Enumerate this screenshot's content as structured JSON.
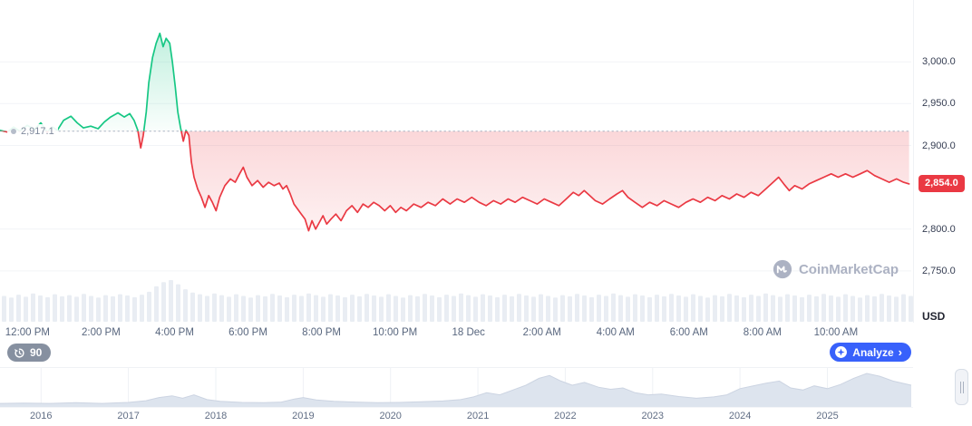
{
  "ui": {
    "watermark": "CoinMarketCap",
    "usd_label": "USD",
    "history_badge": "90",
    "analyze": {
      "label": "Analyze",
      "chevron": "›",
      "color": "#3861fb"
    },
    "baseline_label": "2,917.1",
    "price_badge": {
      "label": "2,854.0",
      "color": "#ea3943"
    }
  },
  "chart_data": [
    {
      "id": "price-24h",
      "type": "line",
      "title": "24h price chart with baseline",
      "unit": "USD",
      "baseline": 2917.1,
      "last_price": 2854.0,
      "ylim": [
        2738,
        3063
      ],
      "xlim": [
        0,
        24.8
      ],
      "grid": true,
      "colors": {
        "up": "#16c784",
        "down": "#ea3943",
        "baseline": "#a9b2c2",
        "volume": "#e9edf3",
        "grid": "#f2f4f7"
      },
      "y_ticks": [
        {
          "v": 3000,
          "label": "3,000.0"
        },
        {
          "v": 2950,
          "label": "2,950.0"
        },
        {
          "v": 2900,
          "label": "2,900.0"
        },
        {
          "v": 2800,
          "label": "2,800.0"
        },
        {
          "v": 2750,
          "label": "2,750.0"
        }
      ],
      "x_ticks": [
        {
          "t": 0.75,
          "label": "12:00 PM"
        },
        {
          "t": 2.75,
          "label": "2:00 PM"
        },
        {
          "t": 4.75,
          "label": "4:00 PM"
        },
        {
          "t": 6.75,
          "label": "6:00 PM"
        },
        {
          "t": 8.75,
          "label": "8:00 PM"
        },
        {
          "t": 10.75,
          "label": "10:00 PM"
        },
        {
          "t": 12.75,
          "label": "18 Dec"
        },
        {
          "t": 14.75,
          "label": "2:00 AM"
        },
        {
          "t": 16.75,
          "label": "4:00 AM"
        },
        {
          "t": 18.75,
          "label": "6:00 AM"
        },
        {
          "t": 20.75,
          "label": "8:00 AM"
        },
        {
          "t": 22.75,
          "label": "10:00 AM"
        }
      ],
      "series": [
        [
          0,
          2918
        ],
        [
          0.2,
          2916
        ],
        [
          0.37,
          2922
        ],
        [
          0.54,
          2917
        ],
        [
          0.74,
          2924
        ],
        [
          0.94,
          2919
        ],
        [
          1.11,
          2927
        ],
        [
          1.28,
          2916
        ],
        [
          1.43,
          2922
        ],
        [
          1.56,
          2918
        ],
        [
          1.73,
          2930
        ],
        [
          1.93,
          2935
        ],
        [
          2.1,
          2927
        ],
        [
          2.27,
          2921
        ],
        [
          2.47,
          2923
        ],
        [
          2.67,
          2920
        ],
        [
          2.84,
          2928
        ],
        [
          3.01,
          2934
        ],
        [
          3.21,
          2939
        ],
        [
          3.38,
          2934
        ],
        [
          3.53,
          2938
        ],
        [
          3.65,
          2930
        ],
        [
          3.75,
          2918
        ],
        [
          3.83,
          2897
        ],
        [
          3.9,
          2912
        ],
        [
          3.98,
          2940
        ],
        [
          4.05,
          2975
        ],
        [
          4.15,
          3005
        ],
        [
          4.25,
          3022
        ],
        [
          4.35,
          3034
        ],
        [
          4.44,
          3018
        ],
        [
          4.52,
          3028
        ],
        [
          4.62,
          3022
        ],
        [
          4.69,
          3000
        ],
        [
          4.77,
          2970
        ],
        [
          4.84,
          2940
        ],
        [
          4.91,
          2922
        ],
        [
          4.99,
          2905
        ],
        [
          5.06,
          2918
        ],
        [
          5.14,
          2912
        ],
        [
          5.21,
          2880
        ],
        [
          5.28,
          2862
        ],
        [
          5.38,
          2848
        ],
        [
          5.48,
          2838
        ],
        [
          5.58,
          2826
        ],
        [
          5.68,
          2840
        ],
        [
          5.78,
          2832
        ],
        [
          5.88,
          2822
        ],
        [
          5.98,
          2838
        ],
        [
          6.12,
          2852
        ],
        [
          6.27,
          2860
        ],
        [
          6.4,
          2856
        ],
        [
          6.52,
          2866
        ],
        [
          6.62,
          2874
        ],
        [
          6.72,
          2862
        ],
        [
          6.86,
          2852
        ],
        [
          7.01,
          2858
        ],
        [
          7.16,
          2850
        ],
        [
          7.31,
          2856
        ],
        [
          7.46,
          2852
        ],
        [
          7.6,
          2855
        ],
        [
          7.7,
          2848
        ],
        [
          7.8,
          2852
        ],
        [
          7.9,
          2842
        ],
        [
          8.0,
          2830
        ],
        [
          8.1,
          2824
        ],
        [
          8.2,
          2818
        ],
        [
          8.3,
          2812
        ],
        [
          8.4,
          2798
        ],
        [
          8.49,
          2810
        ],
        [
          8.59,
          2800
        ],
        [
          8.69,
          2808
        ],
        [
          8.79,
          2816
        ],
        [
          8.89,
          2806
        ],
        [
          9.01,
          2812
        ],
        [
          9.14,
          2818
        ],
        [
          9.28,
          2810
        ],
        [
          9.43,
          2822
        ],
        [
          9.58,
          2828
        ],
        [
          9.73,
          2820
        ],
        [
          9.88,
          2830
        ],
        [
          10.02,
          2826
        ],
        [
          10.17,
          2832
        ],
        [
          10.32,
          2828
        ],
        [
          10.47,
          2822
        ],
        [
          10.62,
          2828
        ],
        [
          10.77,
          2820
        ],
        [
          10.91,
          2826
        ],
        [
          11.06,
          2822
        ],
        [
          11.26,
          2830
        ],
        [
          11.46,
          2826
        ],
        [
          11.65,
          2832
        ],
        [
          11.85,
          2828
        ],
        [
          12.05,
          2836
        ],
        [
          12.25,
          2830
        ],
        [
          12.44,
          2836
        ],
        [
          12.64,
          2832
        ],
        [
          12.84,
          2838
        ],
        [
          13.04,
          2832
        ],
        [
          13.23,
          2828
        ],
        [
          13.43,
          2834
        ],
        [
          13.63,
          2830
        ],
        [
          13.83,
          2836
        ],
        [
          14.02,
          2832
        ],
        [
          14.22,
          2838
        ],
        [
          14.42,
          2834
        ],
        [
          14.62,
          2830
        ],
        [
          14.81,
          2836
        ],
        [
          15.01,
          2832
        ],
        [
          15.21,
          2828
        ],
        [
          15.41,
          2836
        ],
        [
          15.6,
          2844
        ],
        [
          15.75,
          2840
        ],
        [
          15.9,
          2846
        ],
        [
          16.05,
          2840
        ],
        [
          16.2,
          2834
        ],
        [
          16.4,
          2830
        ],
        [
          16.59,
          2836
        ],
        [
          16.79,
          2842
        ],
        [
          16.94,
          2846
        ],
        [
          17.09,
          2838
        ],
        [
          17.28,
          2832
        ],
        [
          17.48,
          2826
        ],
        [
          17.68,
          2832
        ],
        [
          17.88,
          2828
        ],
        [
          18.07,
          2834
        ],
        [
          18.27,
          2830
        ],
        [
          18.47,
          2826
        ],
        [
          18.67,
          2832
        ],
        [
          18.86,
          2836
        ],
        [
          19.06,
          2832
        ],
        [
          19.26,
          2838
        ],
        [
          19.46,
          2834
        ],
        [
          19.65,
          2840
        ],
        [
          19.85,
          2836
        ],
        [
          20.05,
          2842
        ],
        [
          20.25,
          2838
        ],
        [
          20.44,
          2844
        ],
        [
          20.64,
          2840
        ],
        [
          20.84,
          2848
        ],
        [
          21.04,
          2856
        ],
        [
          21.19,
          2862
        ],
        [
          21.33,
          2854
        ],
        [
          21.48,
          2846
        ],
        [
          21.63,
          2852
        ],
        [
          21.83,
          2848
        ],
        [
          22.02,
          2854
        ],
        [
          22.22,
          2858
        ],
        [
          22.42,
          2862
        ],
        [
          22.62,
          2866
        ],
        [
          22.81,
          2862
        ],
        [
          23.01,
          2866
        ],
        [
          23.21,
          2862
        ],
        [
          23.41,
          2866
        ],
        [
          23.6,
          2870
        ],
        [
          23.8,
          2864
        ],
        [
          24.0,
          2860
        ],
        [
          24.2,
          2856
        ],
        [
          24.4,
          2860
        ],
        [
          24.59,
          2856
        ],
        [
          24.74,
          2854
        ]
      ],
      "volume": [
        0.62,
        0.58,
        0.65,
        0.6,
        0.68,
        0.63,
        0.59,
        0.66,
        0.61,
        0.64,
        0.6,
        0.67,
        0.62,
        0.58,
        0.64,
        0.61,
        0.66,
        0.63,
        0.59,
        0.65,
        0.72,
        0.85,
        0.95,
        1.0,
        0.9,
        0.78,
        0.7,
        0.66,
        0.62,
        0.68,
        0.64,
        0.6,
        0.66,
        0.62,
        0.58,
        0.64,
        0.61,
        0.67,
        0.63,
        0.59,
        0.65,
        0.62,
        0.68,
        0.64,
        0.6,
        0.66,
        0.63,
        0.59,
        0.65,
        0.61,
        0.67,
        0.63,
        0.6,
        0.66,
        0.62,
        0.58,
        0.64,
        0.61,
        0.67,
        0.63,
        0.59,
        0.65,
        0.62,
        0.68,
        0.64,
        0.6,
        0.66,
        0.63,
        0.59,
        0.65,
        0.61,
        0.67,
        0.63,
        0.6,
        0.66,
        0.62,
        0.58,
        0.64,
        0.61,
        0.67,
        0.63,
        0.59,
        0.65,
        0.62,
        0.68,
        0.64,
        0.6,
        0.66,
        0.63,
        0.59,
        0.65,
        0.61,
        0.67,
        0.63,
        0.6,
        0.66,
        0.62,
        0.58,
        0.64,
        0.61,
        0.67,
        0.63,
        0.59,
        0.65,
        0.62,
        0.68,
        0.64,
        0.6,
        0.66,
        0.63,
        0.59,
        0.65,
        0.61,
        0.67,
        0.63,
        0.6,
        0.66,
        0.62,
        0.58,
        0.64,
        0.61,
        0.67,
        0.63,
        0.6,
        0.66,
        0.62
      ]
    },
    {
      "id": "history-overview",
      "type": "area",
      "title": "All-time range selector",
      "xlim": [
        2015.53,
        2025.96
      ],
      "color": "#dde4ee",
      "line_color": "#ccd4e2",
      "grid_color": "#eef1f5",
      "ticks": [
        {
          "v": 2016,
          "label": "2016"
        },
        {
          "v": 2017,
          "label": "2017"
        },
        {
          "v": 2018,
          "label": "2018"
        },
        {
          "v": 2019,
          "label": "2019"
        },
        {
          "v": 2020,
          "label": "2020"
        },
        {
          "v": 2021,
          "label": "2021"
        },
        {
          "v": 2022,
          "label": "2022"
        },
        {
          "v": 2023,
          "label": "2023"
        },
        {
          "v": 2024,
          "label": "2024"
        },
        {
          "v": 2025,
          "label": "2025"
        }
      ],
      "series": [
        [
          2015.53,
          0.05
        ],
        [
          2015.8,
          0.06
        ],
        [
          2016.1,
          0.05
        ],
        [
          2016.4,
          0.07
        ],
        [
          2016.7,
          0.05
        ],
        [
          2017.0,
          0.08
        ],
        [
          2017.2,
          0.13
        ],
        [
          2017.35,
          0.22
        ],
        [
          2017.5,
          0.27
        ],
        [
          2017.62,
          0.2
        ],
        [
          2017.75,
          0.3
        ],
        [
          2017.9,
          0.16
        ],
        [
          2018.05,
          0.11
        ],
        [
          2018.3,
          0.08
        ],
        [
          2018.55,
          0.07
        ],
        [
          2018.75,
          0.09
        ],
        [
          2018.9,
          0.18
        ],
        [
          2019.0,
          0.22
        ],
        [
          2019.15,
          0.15
        ],
        [
          2019.35,
          0.11
        ],
        [
          2019.6,
          0.09
        ],
        [
          2019.85,
          0.07
        ],
        [
          2020.1,
          0.08
        ],
        [
          2020.35,
          0.1
        ],
        [
          2020.6,
          0.12
        ],
        [
          2020.8,
          0.16
        ],
        [
          2020.95,
          0.24
        ],
        [
          2021.1,
          0.36
        ],
        [
          2021.25,
          0.3
        ],
        [
          2021.4,
          0.44
        ],
        [
          2021.55,
          0.58
        ],
        [
          2021.7,
          0.78
        ],
        [
          2021.82,
          0.86
        ],
        [
          2021.95,
          0.7
        ],
        [
          2022.08,
          0.58
        ],
        [
          2022.22,
          0.66
        ],
        [
          2022.38,
          0.52
        ],
        [
          2022.52,
          0.46
        ],
        [
          2022.66,
          0.5
        ],
        [
          2022.8,
          0.36
        ],
        [
          2022.95,
          0.3
        ],
        [
          2023.1,
          0.32
        ],
        [
          2023.3,
          0.25
        ],
        [
          2023.5,
          0.2
        ],
        [
          2023.7,
          0.24
        ],
        [
          2023.85,
          0.3
        ],
        [
          2024.0,
          0.48
        ],
        [
          2024.15,
          0.56
        ],
        [
          2024.3,
          0.64
        ],
        [
          2024.45,
          0.7
        ],
        [
          2024.58,
          0.5
        ],
        [
          2024.72,
          0.44
        ],
        [
          2024.85,
          0.56
        ],
        [
          2025.0,
          0.48
        ],
        [
          2025.15,
          0.6
        ],
        [
          2025.3,
          0.78
        ],
        [
          2025.45,
          0.92
        ],
        [
          2025.6,
          0.84
        ],
        [
          2025.75,
          0.7
        ],
        [
          2025.96,
          0.58
        ]
      ]
    }
  ]
}
